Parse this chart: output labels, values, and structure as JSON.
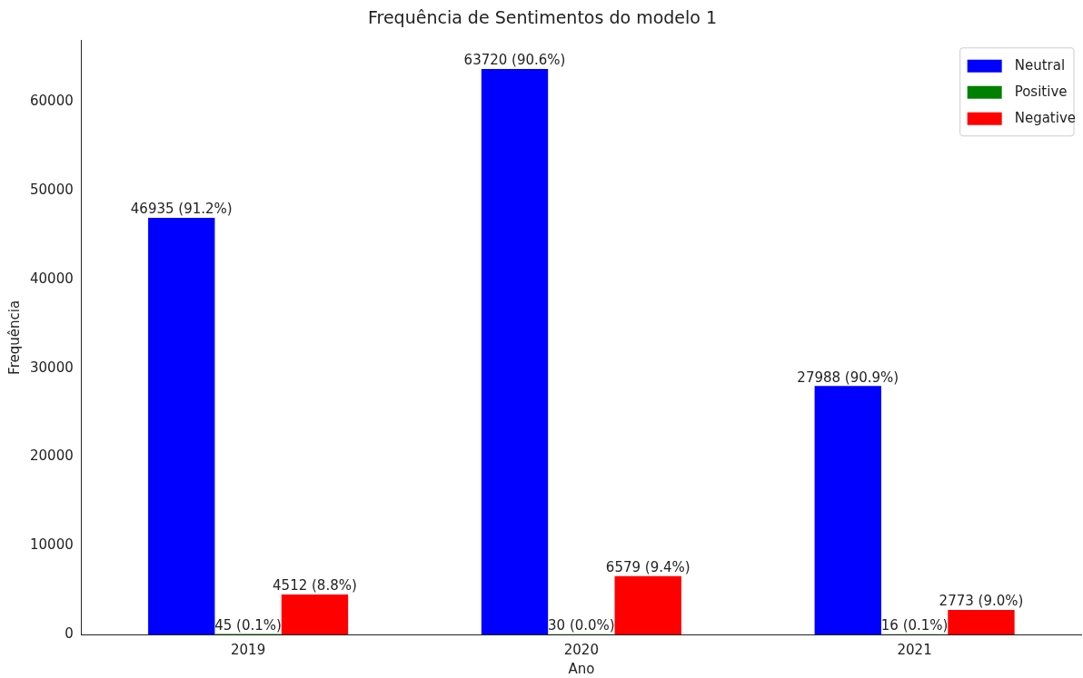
{
  "chart_data": {
    "type": "bar",
    "title": "Frequência de Sentimentos do modelo 1",
    "xlabel": "Ano",
    "ylabel": "Frequência",
    "categories": [
      "2019",
      "2020",
      "2021"
    ],
    "series": [
      {
        "name": "Neutral",
        "color": "#0000ff",
        "values": [
          46935,
          63720,
          27988
        ],
        "value_labels": [
          "46935 (91.2%)",
          "63720 (90.6%)",
          "27988 (90.9%)"
        ]
      },
      {
        "name": "Positive",
        "color": "#008000",
        "values": [
          45,
          30,
          16
        ],
        "value_labels": [
          "45 (0.1%)",
          "30 (0.0%)",
          "16 (0.1%)"
        ]
      },
      {
        "name": "Negative",
        "color": "#ff0000",
        "values": [
          4512,
          6579,
          2773
        ],
        "value_labels": [
          "4512 (8.8%)",
          "6579 (9.4%)",
          "2773 (9.0%)"
        ]
      }
    ],
    "ylim": [
      0,
      66906
    ],
    "yticks": [
      0,
      10000,
      20000,
      30000,
      40000,
      50000,
      60000
    ],
    "grid": false,
    "legend": "top right"
  }
}
